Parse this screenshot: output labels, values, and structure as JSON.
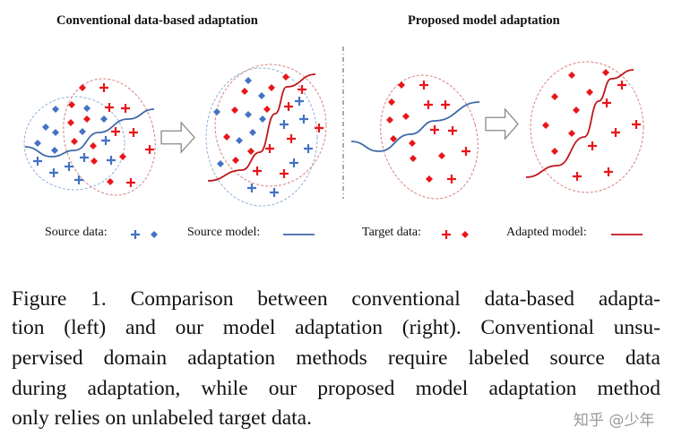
{
  "figure": {
    "left_title": "Conventional data-based adaptation",
    "right_title": "Proposed model adaptation",
    "legend": {
      "source_data": "Source data:",
      "source_model": "Source model:",
      "target_data": "Target data:",
      "adapted_model": "Adapted model:"
    },
    "colors": {
      "source": "#4472c4",
      "target": "#e8161b",
      "source_model": "#3e6aa8",
      "adapted_model": "#c0161b"
    }
  },
  "caption": {
    "lines": [
      "Figure 1. Comparison between conventional data-based adapta-",
      "tion (left) and our model adaptation (right).  Conventional unsu-",
      "pervised domain adaptation methods require labeled source data",
      "during adaptation, while our proposed model adaptation method",
      "only relies on unlabeled target data."
    ]
  },
  "watermark": "知乎 @少年"
}
